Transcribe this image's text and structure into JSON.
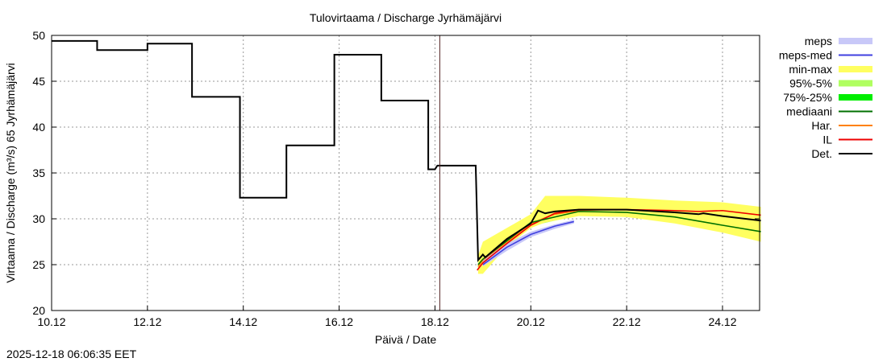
{
  "chart_data": {
    "type": "line",
    "title": "Tulovirtaama / Discharge  Jyrhämäjärvi",
    "xlabel": "Päivä / Date",
    "ylabel": "Virtaama / Discharge (m³/s)  65 Jyrhämäjärvi",
    "ylim": [
      20,
      50
    ],
    "yticks": [
      20,
      25,
      30,
      35,
      40,
      45,
      50
    ],
    "xlim_days": [
      0,
      14.8
    ],
    "xticks": [
      {
        "d": 0,
        "label": "10.12"
      },
      {
        "d": 2,
        "label": "12.12"
      },
      {
        "d": 4,
        "label": "14.12"
      },
      {
        "d": 6,
        "label": "16.12"
      },
      {
        "d": 8,
        "label": "18.12"
      },
      {
        "d": 10,
        "label": "20.12"
      },
      {
        "d": 12,
        "label": "22.12"
      },
      {
        "d": 14,
        "label": "24.12"
      }
    ],
    "grid": true,
    "now_marker_day": 8.1,
    "legend_position": "right",
    "legend": [
      {
        "label": "meps",
        "color": "#c8c8f8",
        "kind": "band"
      },
      {
        "label": "meps-med",
        "color": "#4040e0",
        "kind": "line"
      },
      {
        "label": "min-max",
        "color": "#ffff60",
        "kind": "band"
      },
      {
        "label": "95%-5%",
        "color": "#b0ff60",
        "kind": "band"
      },
      {
        "label": "75%-25%",
        "color": "#00ee00",
        "kind": "band"
      },
      {
        "label": "mediaani",
        "color": "#007000",
        "kind": "line"
      },
      {
        "label": "Har.",
        "color": "#ff8000",
        "kind": "line"
      },
      {
        "label": "IL",
        "color": "#ee0000",
        "kind": "line"
      },
      {
        "label": "Det.",
        "color": "#000000",
        "kind": "line"
      }
    ],
    "bands": [
      {
        "name": "meps",
        "color": "#c8c8f8",
        "x": [
          9.0,
          9.5,
          10,
          10.5,
          10.9
        ],
        "upper": [
          25.6,
          27.3,
          28.6,
          29.4,
          29.9
        ],
        "lower": [
          24.8,
          26.5,
          28.0,
          28.9,
          29.5
        ]
      },
      {
        "name": "min-max",
        "color": "#ffff60",
        "x": [
          8.9,
          9.0,
          9.5,
          10,
          10.3,
          11,
          12,
          13,
          14,
          14.8
        ],
        "upper": [
          26,
          27.5,
          29,
          30.5,
          32.5,
          32.5,
          32.3,
          32,
          31.8,
          31.3
        ],
        "lower": [
          24,
          24,
          27,
          29,
          29.6,
          30.3,
          30.2,
          29.5,
          28.5,
          27.5
        ]
      },
      {
        "name": "95%-5%",
        "color": "#b0ff60",
        "x": [
          8.9,
          9.0,
          10,
          11,
          12,
          13,
          14,
          14.8
        ],
        "upper": [
          25.5,
          26.5,
          30.2,
          31.6,
          31.5,
          31.3,
          30.8,
          30.4
        ],
        "lower": [
          24.3,
          24.5,
          29.2,
          30.4,
          30.2,
          29.7,
          28.7,
          27.8
        ]
      },
      {
        "name": "75%-25%",
        "color": "#00ee00",
        "x": [
          8.9,
          9.0,
          10,
          11,
          12,
          13,
          14,
          14.8
        ],
        "upper": [
          25.3,
          26,
          29.8,
          31.2,
          31,
          30.6,
          30,
          29.6
        ],
        "lower": [
          24.6,
          25,
          29.5,
          30.5,
          30.3,
          29.8,
          28.8,
          28.1
        ]
      }
    ],
    "series": [
      {
        "name": "meps-med",
        "color": "#4040e0",
        "x": [
          9.0,
          9.5,
          10,
          10.5,
          10.9
        ],
        "y": [
          25.0,
          26.9,
          28.3,
          29.2,
          29.7
        ]
      },
      {
        "name": "mediaani",
        "color": "#007000",
        "x": [
          8.9,
          9.0,
          10,
          11,
          12,
          13,
          14,
          14.8
        ],
        "y": [
          25,
          25.6,
          29.6,
          30.8,
          30.7,
          30.2,
          29.3,
          28.6
        ]
      },
      {
        "name": "Har.",
        "color": "#ff8000",
        "x": [
          8.9,
          9.0,
          10,
          10.5,
          11,
          11.5
        ],
        "y": [
          24.8,
          25.5,
          29.5,
          30.5,
          30.9,
          31.0
        ]
      },
      {
        "name": "IL",
        "color": "#ee0000",
        "x": [
          8.88,
          9.0,
          9.5,
          10,
          10.5,
          11,
          12,
          13,
          13.5,
          14,
          14.8
        ],
        "y": [
          24.4,
          25.2,
          27.3,
          29.3,
          30.6,
          31.0,
          31.0,
          30.9,
          30.8,
          30.9,
          30.4
        ]
      },
      {
        "name": "Det.",
        "color": "#000000",
        "x": [
          0,
          0.95,
          0.95,
          2.0,
          2.0,
          2.93,
          2.93,
          3.93,
          3.93,
          4.9,
          4.9,
          5.9,
          5.9,
          6.88,
          6.88,
          7.86,
          7.86,
          8.0,
          8.05,
          8.85,
          8.9,
          9.0,
          9.05,
          9.5,
          10,
          10.15,
          10.3,
          10.5,
          11,
          12,
          13,
          13.5,
          13.6,
          14,
          14.8
        ],
        "y": [
          49.4,
          49.4,
          48.4,
          48.4,
          49.1,
          49.1,
          43.3,
          43.3,
          32.3,
          32.3,
          38.0,
          38.0,
          47.9,
          47.9,
          42.9,
          42.9,
          35.4,
          35.4,
          35.8,
          35.8,
          25.5,
          26.1,
          25.8,
          27.8,
          29.5,
          30.9,
          30.6,
          30.8,
          31.0,
          31.0,
          30.7,
          30.5,
          30.6,
          30.3,
          29.8
        ]
      }
    ]
  },
  "footer": {
    "timestamp": "2025-12-18 06:06:35 EET"
  }
}
